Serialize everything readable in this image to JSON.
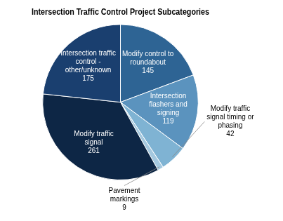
{
  "chart_data": {
    "type": "pie",
    "title": "Intersection Traffic Control Project Subcategories",
    "categories": [
      "Modify control to\nroundabout",
      "Intersection\nflashers and\nsigning",
      "Modify traffic\nsignal timing or\nphasing",
      "Pavement\nmarkings",
      "Modify traffic\nsignal",
      "Intersection traffic\ncontrol -\nother/unknown"
    ],
    "values": [
      145,
      119,
      42,
      9,
      261,
      175
    ],
    "colors": [
      "#2e6494",
      "#5b93be",
      "#7fb3d3",
      "#a4c8df",
      "#0d2645",
      "#1a3f6f"
    ],
    "data_labels": true,
    "legend": false
  }
}
